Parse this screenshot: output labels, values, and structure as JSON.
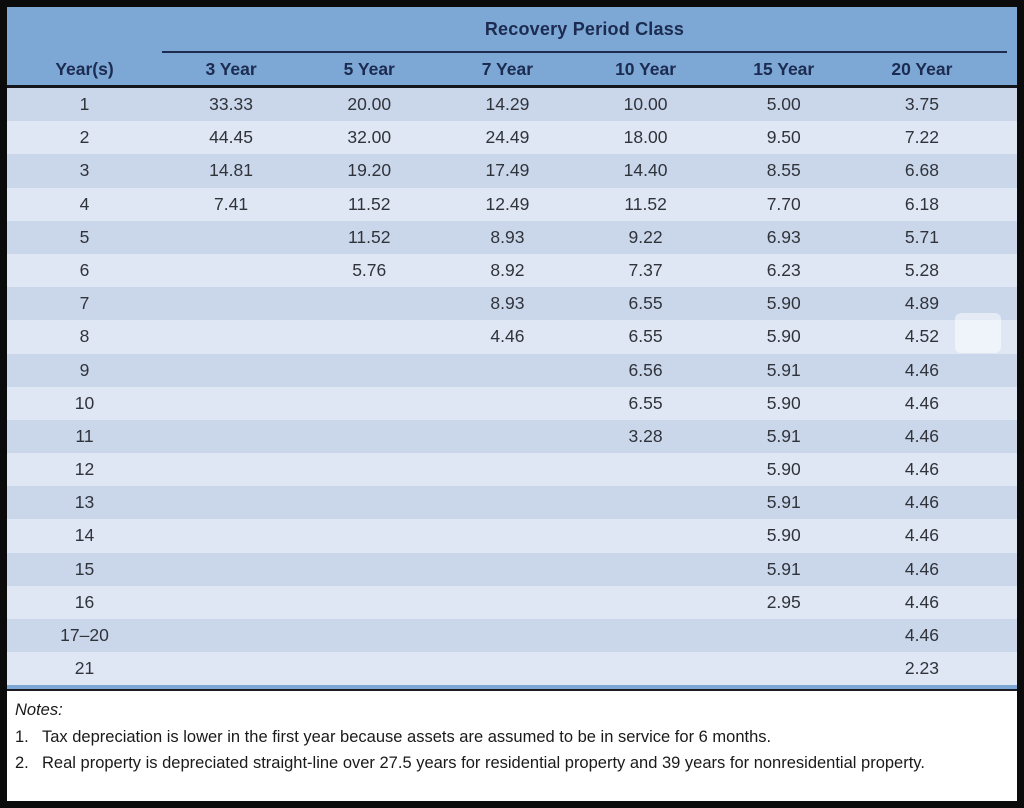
{
  "table": {
    "group_header": "Recovery Period Class",
    "columns": [
      "Year(s)",
      "3 Year",
      "5 Year",
      "7 Year",
      "10 Year",
      "15 Year",
      "20 Year"
    ],
    "rows": [
      {
        "year": "1",
        "values": [
          "33.33",
          "20.00",
          "14.29",
          "10.00",
          "5.00",
          "3.75"
        ]
      },
      {
        "year": "2",
        "values": [
          "44.45",
          "32.00",
          "24.49",
          "18.00",
          "9.50",
          "7.22"
        ]
      },
      {
        "year": "3",
        "values": [
          "14.81",
          "19.20",
          "17.49",
          "14.40",
          "8.55",
          "6.68"
        ]
      },
      {
        "year": "4",
        "values": [
          "7.41",
          "11.52",
          "12.49",
          "11.52",
          "7.70",
          "6.18"
        ]
      },
      {
        "year": "5",
        "values": [
          "",
          "11.52",
          "8.93",
          "9.22",
          "6.93",
          "5.71"
        ]
      },
      {
        "year": "6",
        "values": [
          "",
          "5.76",
          "8.92",
          "7.37",
          "6.23",
          "5.28"
        ]
      },
      {
        "year": "7",
        "values": [
          "",
          "",
          "8.93",
          "6.55",
          "5.90",
          "4.89"
        ]
      },
      {
        "year": "8",
        "values": [
          "",
          "",
          "4.46",
          "6.55",
          "5.90",
          "4.52"
        ]
      },
      {
        "year": "9",
        "values": [
          "",
          "",
          "",
          "6.56",
          "5.91",
          "4.46"
        ]
      },
      {
        "year": "10",
        "values": [
          "",
          "",
          "",
          "6.55",
          "5.90",
          "4.46"
        ]
      },
      {
        "year": "11",
        "values": [
          "",
          "",
          "",
          "3.28",
          "5.91",
          "4.46"
        ]
      },
      {
        "year": "12",
        "values": [
          "",
          "",
          "",
          "",
          "5.90",
          "4.46"
        ]
      },
      {
        "year": "13",
        "values": [
          "",
          "",
          "",
          "",
          "5.91",
          "4.46"
        ]
      },
      {
        "year": "14",
        "values": [
          "",
          "",
          "",
          "",
          "5.90",
          "4.46"
        ]
      },
      {
        "year": "15",
        "values": [
          "",
          "",
          "",
          "",
          "5.91",
          "4.46"
        ]
      },
      {
        "year": "16",
        "values": [
          "",
          "",
          "",
          "",
          "2.95",
          "4.46"
        ]
      },
      {
        "year": "17–20",
        "values": [
          "",
          "",
          "",
          "",
          "",
          "4.46"
        ]
      },
      {
        "year": "21",
        "values": [
          "",
          "",
          "",
          "",
          "",
          "2.23"
        ]
      }
    ]
  },
  "chart_data": {
    "type": "table",
    "title": "Recovery Period Class",
    "columns": [
      "Year(s)",
      "3 Year",
      "5 Year",
      "7 Year",
      "10 Year",
      "15 Year",
      "20 Year"
    ],
    "rows": [
      [
        "1",
        33.33,
        20.0,
        14.29,
        10.0,
        5.0,
        3.75
      ],
      [
        "2",
        44.45,
        32.0,
        24.49,
        18.0,
        9.5,
        7.22
      ],
      [
        "3",
        14.81,
        19.2,
        17.49,
        14.4,
        8.55,
        6.68
      ],
      [
        "4",
        7.41,
        11.52,
        12.49,
        11.52,
        7.7,
        6.18
      ],
      [
        "5",
        null,
        11.52,
        8.93,
        9.22,
        6.93,
        5.71
      ],
      [
        "6",
        null,
        5.76,
        8.92,
        7.37,
        6.23,
        5.28
      ],
      [
        "7",
        null,
        null,
        8.93,
        6.55,
        5.9,
        4.89
      ],
      [
        "8",
        null,
        null,
        4.46,
        6.55,
        5.9,
        4.52
      ],
      [
        "9",
        null,
        null,
        null,
        6.56,
        5.91,
        4.46
      ],
      [
        "10",
        null,
        null,
        null,
        6.55,
        5.9,
        4.46
      ],
      [
        "11",
        null,
        null,
        null,
        3.28,
        5.91,
        4.46
      ],
      [
        "12",
        null,
        null,
        null,
        null,
        5.9,
        4.46
      ],
      [
        "13",
        null,
        null,
        null,
        null,
        5.91,
        4.46
      ],
      [
        "14",
        null,
        null,
        null,
        null,
        5.9,
        4.46
      ],
      [
        "15",
        null,
        null,
        null,
        null,
        5.91,
        4.46
      ],
      [
        "16",
        null,
        null,
        null,
        null,
        2.95,
        4.46
      ],
      [
        "17–20",
        null,
        null,
        null,
        null,
        null,
        4.46
      ],
      [
        "21",
        null,
        null,
        null,
        null,
        null,
        2.23
      ]
    ]
  },
  "notes": {
    "label": "Notes:",
    "items": [
      {
        "num": "1.",
        "text": "Tax depreciation is lower in the first year because assets are assumed to be in service for 6 months."
      },
      {
        "num": "2.",
        "text": "Real property is depreciated straight-line over 27.5 years for residential property and 39 years for nonresidential property."
      }
    ]
  },
  "colors": {
    "header_blue": "#7da7d5",
    "header_text_navy": "#1c2b50",
    "row_dark": "#cad7eb",
    "row_light": "#dfe7f4",
    "data_text": "#30333a",
    "border_black": "#0b0b0b"
  }
}
